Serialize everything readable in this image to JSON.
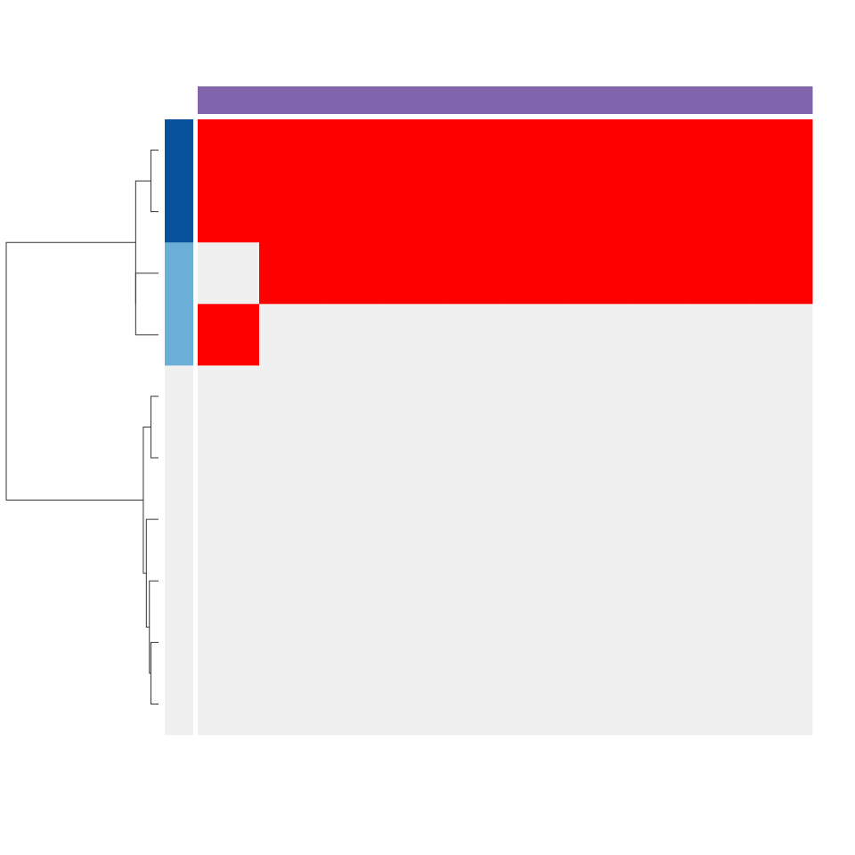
{
  "chart_data": {
    "type": "heatmap",
    "title": "",
    "xlabel": "",
    "ylabel": "",
    "n_rows": 10,
    "n_cols": 10,
    "col_labels": [],
    "row_labels": [],
    "matrix": [
      [
        1,
        1,
        1,
        1,
        1,
        1,
        1,
        1,
        1,
        1
      ],
      [
        1,
        1,
        1,
        1,
        1,
        1,
        1,
        1,
        1,
        1
      ],
      [
        0,
        1,
        1,
        1,
        1,
        1,
        1,
        1,
        1,
        1
      ],
      [
        1,
        0,
        0,
        0,
        0,
        0,
        0,
        0,
        0,
        0
      ],
      [
        0,
        0,
        0,
        0,
        0,
        0,
        0,
        0,
        0,
        0
      ],
      [
        0,
        0,
        0,
        0,
        0,
        0,
        0,
        0,
        0,
        0
      ],
      [
        0,
        0,
        0,
        0,
        0,
        0,
        0,
        0,
        0,
        0
      ],
      [
        0,
        0,
        0,
        0,
        0,
        0,
        0,
        0,
        0,
        0
      ],
      [
        0,
        0,
        0,
        0,
        0,
        0,
        0,
        0,
        0,
        0
      ],
      [
        0,
        0,
        0,
        0,
        0,
        0,
        0,
        0,
        0,
        0
      ]
    ],
    "value_colors": {
      "0": "#f0f0f0",
      "1": "#ff0000"
    },
    "row_groups": [
      2,
      2,
      1,
      1,
      0,
      0,
      0,
      0,
      0,
      0
    ],
    "row_group_colors": {
      "0": "#f0f0f0",
      "1": "#6baed6",
      "2": "#08519c"
    },
    "column_annotation_color": "#8064ac",
    "row_dendrogram": {
      "leaves": 10,
      "merges": [
        {
          "left": -1,
          "right": -2,
          "height": 0.05
        },
        {
          "left": -4,
          "right": -3,
          "height": 0.15
        },
        {
          "left": 1,
          "right": 0,
          "height": 0.15
        },
        {
          "left": -5,
          "right": -6,
          "height": 0.05
        },
        {
          "left": -9,
          "right": -10,
          "height": 0.05
        },
        {
          "left": -8,
          "right": 4,
          "height": 0.06
        },
        {
          "left": -7,
          "right": 5,
          "height": 0.08
        },
        {
          "left": 3,
          "right": 6,
          "height": 0.1
        },
        {
          "left": 2,
          "right": 7,
          "height": 1.0
        }
      ]
    }
  }
}
